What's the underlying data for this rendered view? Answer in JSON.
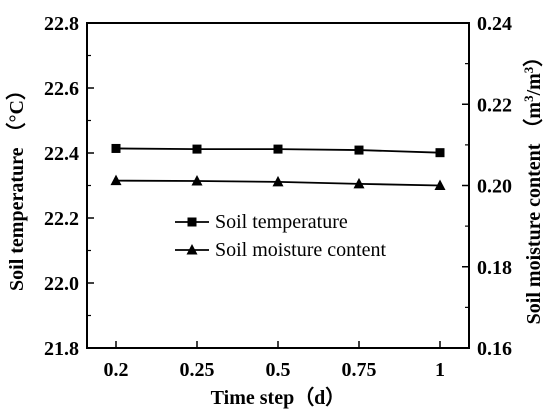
{
  "chart_data": {
    "type": "line",
    "categories": [
      "0.2",
      "0.25",
      "0.5",
      "0.75",
      "1"
    ],
    "xlabel": "Time step（d）",
    "ylabel_left": "Soil temperature （°C）",
    "ylabel_right_prefix": "Soil moisture content （m",
    "ylabel_right_sup1": "3",
    "ylabel_right_mid": "/m",
    "ylabel_right_sup2": "3",
    "ylabel_right_suffix": "）",
    "ylim_left": [
      21.8,
      22.8
    ],
    "yticks_left": [
      "21.8",
      "22.0",
      "22.2",
      "22.4",
      "22.6",
      "22.8"
    ],
    "ylim_right": [
      0.16,
      0.24
    ],
    "yticks_right": [
      "0.16",
      "0.18",
      "0.20",
      "0.22",
      "0.24"
    ],
    "grid": false,
    "legend_position": "center-left",
    "series": [
      {
        "name": "Soil temperature",
        "axis": "left",
        "marker": "square",
        "values": [
          22.414,
          22.412,
          22.412,
          22.409,
          22.401
        ]
      },
      {
        "name": "Soil moisture content",
        "axis": "right",
        "marker": "triangle",
        "values": [
          0.2012,
          0.2011,
          0.2009,
          0.2004,
          0.2
        ]
      }
    ],
    "line_color": "#000000"
  }
}
